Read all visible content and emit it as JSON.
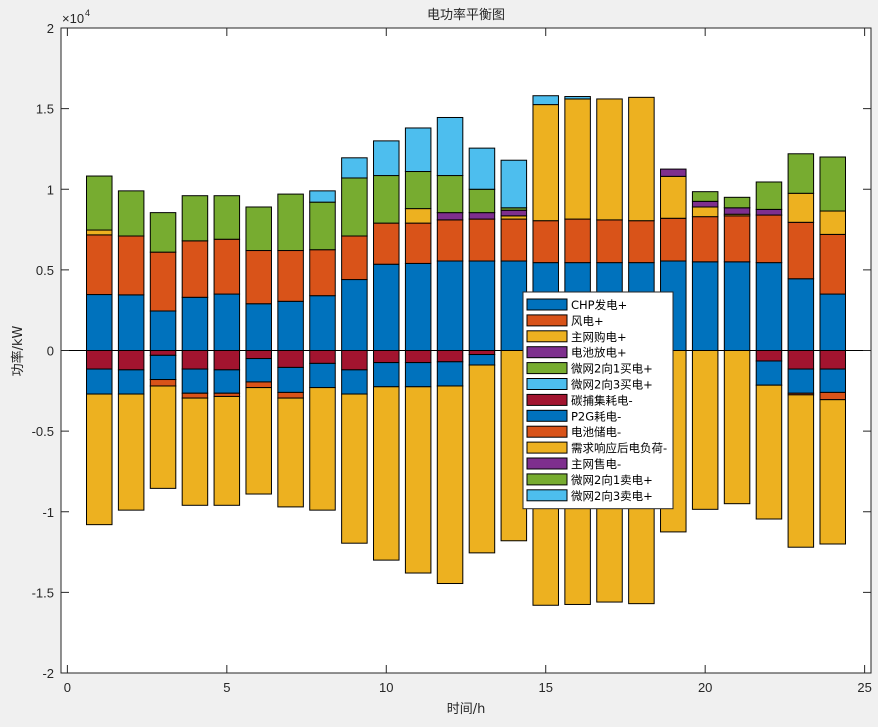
{
  "chart_data": {
    "type": "bar",
    "stacked": true,
    "title": "电功率平衡图",
    "xlabel": "时间/h",
    "ylabel": "功率/kW",
    "y_multiplier_label": "×10",
    "y_multiplier_exp": "4",
    "xlim": [
      -0.2,
      25.2
    ],
    "ylim": [
      -20000,
      20000
    ],
    "xticks": [
      0,
      5,
      10,
      15,
      20,
      25
    ],
    "xtick_labels": [
      "0",
      "5",
      "10",
      "15",
      "20",
      "25"
    ],
    "yticks": [
      -20000,
      -15000,
      -10000,
      -5000,
      0,
      5000,
      10000,
      15000,
      20000
    ],
    "ytick_labels": [
      "-2",
      "-1.5",
      "-1",
      "-0.5",
      "0",
      "0.5",
      "1",
      "1.5",
      "2"
    ],
    "legend_position": "center-right",
    "categories": [
      1,
      2,
      3,
      4,
      5,
      6,
      7,
      8,
      9,
      10,
      11,
      12,
      13,
      14,
      15,
      16,
      17,
      18,
      19,
      20,
      21,
      22,
      23,
      24
    ],
    "series": [
      {
        "name": "CHP发电+",
        "color": "#0072BD",
        "sign": "positive",
        "values": [
          3470,
          3450,
          2450,
          3300,
          3500,
          2900,
          3050,
          3400,
          4400,
          5350,
          5400,
          5550,
          5550,
          5550,
          5450,
          5450,
          5450,
          5450,
          5550,
          5500,
          5500,
          5450,
          4450,
          3500
        ]
      },
      {
        "name": "风电+",
        "color": "#D95319",
        "sign": "positive",
        "values": [
          3700,
          3650,
          3650,
          3500,
          3400,
          3300,
          3150,
          2850,
          2700,
          2550,
          2500,
          2550,
          2600,
          2600,
          2600,
          2700,
          2650,
          2600,
          2650,
          2800,
          2850,
          2950,
          3500,
          3700
        ]
      },
      {
        "name": "主网购电+",
        "color": "#EDB120",
        "sign": "positive",
        "values": [
          300,
          0,
          0,
          0,
          0,
          0,
          0,
          0,
          0,
          0,
          900,
          0,
          0,
          200,
          7200,
          7450,
          7500,
          7650,
          2600,
          600,
          100,
          0,
          1800,
          1450
        ]
      },
      {
        "name": "电池放电+",
        "color": "#7E2F8E",
        "sign": "positive",
        "values": [
          0,
          0,
          0,
          0,
          0,
          0,
          0,
          0,
          0,
          0,
          0,
          450,
          400,
          350,
          0,
          0,
          0,
          0,
          450,
          350,
          400,
          350,
          0,
          0
        ]
      },
      {
        "name": "微网2向1买电+",
        "color": "#77AC30",
        "sign": "positive",
        "values": [
          3350,
          2800,
          2450,
          2800,
          2700,
          2700,
          3500,
          2950,
          3600,
          2950,
          2300,
          2300,
          1450,
          150,
          0,
          0,
          0,
          0,
          0,
          600,
          650,
          1700,
          2450,
          3350
        ]
      },
      {
        "name": "微网2向3买电+",
        "color": "#4DBEEE",
        "sign": "positive",
        "values": [
          0,
          0,
          0,
          0,
          0,
          0,
          0,
          700,
          1250,
          2150,
          2700,
          3600,
          2550,
          2950,
          550,
          150,
          0,
          0,
          0,
          0,
          0,
          0,
          0,
          0
        ]
      },
      {
        "name": "碳捕集耗电-",
        "color": "#A2142F",
        "sign": "negative",
        "values": [
          -1150,
          -1200,
          -300,
          -1150,
          -1200,
          -500,
          -1050,
          -800,
          -1200,
          -750,
          -750,
          -700,
          -250,
          0,
          0,
          0,
          0,
          0,
          0,
          0,
          0,
          -650,
          -1150,
          -1150
        ]
      },
      {
        "name": "P2G耗电-",
        "color": "#0072BD",
        "sign": "negative",
        "values": [
          -1550,
          -1500,
          -1500,
          -1500,
          -1450,
          -1450,
          -1550,
          -1500,
          -1500,
          -1500,
          -1500,
          -1500,
          -650,
          0,
          0,
          0,
          0,
          0,
          0,
          0,
          0,
          -1500,
          -1500,
          -1450
        ]
      },
      {
        "name": "电池储电-",
        "color": "#D95319",
        "sign": "negative",
        "values": [
          0,
          0,
          -400,
          -300,
          -200,
          -350,
          -350,
          0,
          0,
          0,
          0,
          0,
          0,
          0,
          0,
          0,
          0,
          0,
          0,
          0,
          0,
          0,
          -100,
          -450
        ]
      },
      {
        "name": "需求响应后电负荷-",
        "color": "#EDB120",
        "sign": "negative",
        "values": [
          -8100,
          -7200,
          -6350,
          -6650,
          -6750,
          -6600,
          -6750,
          -7600,
          -9250,
          -10750,
          -11550,
          -12250,
          -11650,
          -11800,
          -15800,
          -15750,
          -15600,
          -15700,
          -11250,
          -9850,
          -9500,
          -8300,
          -9450,
          -8950
        ]
      },
      {
        "name": "主网售电-",
        "color": "#7E2F8E",
        "sign": "negative",
        "values": [
          0,
          0,
          0,
          0,
          0,
          0,
          0,
          0,
          0,
          0,
          0,
          0,
          0,
          0,
          0,
          0,
          0,
          0,
          0,
          0,
          0,
          0,
          0,
          0
        ]
      },
      {
        "name": "微网2向1卖电+",
        "color": "#77AC30",
        "sign": "negative",
        "values": [
          0,
          0,
          0,
          0,
          0,
          0,
          0,
          0,
          0,
          0,
          0,
          0,
          0,
          0,
          0,
          0,
          0,
          0,
          0,
          0,
          0,
          0,
          0,
          0
        ]
      },
      {
        "name": "微网2向3卖电+",
        "color": "#4DBEEE",
        "sign": "negative",
        "values": [
          0,
          0,
          0,
          0,
          0,
          0,
          0,
          0,
          0,
          0,
          0,
          0,
          0,
          0,
          0,
          0,
          0,
          0,
          0,
          0,
          0,
          0,
          0,
          0
        ]
      }
    ]
  }
}
